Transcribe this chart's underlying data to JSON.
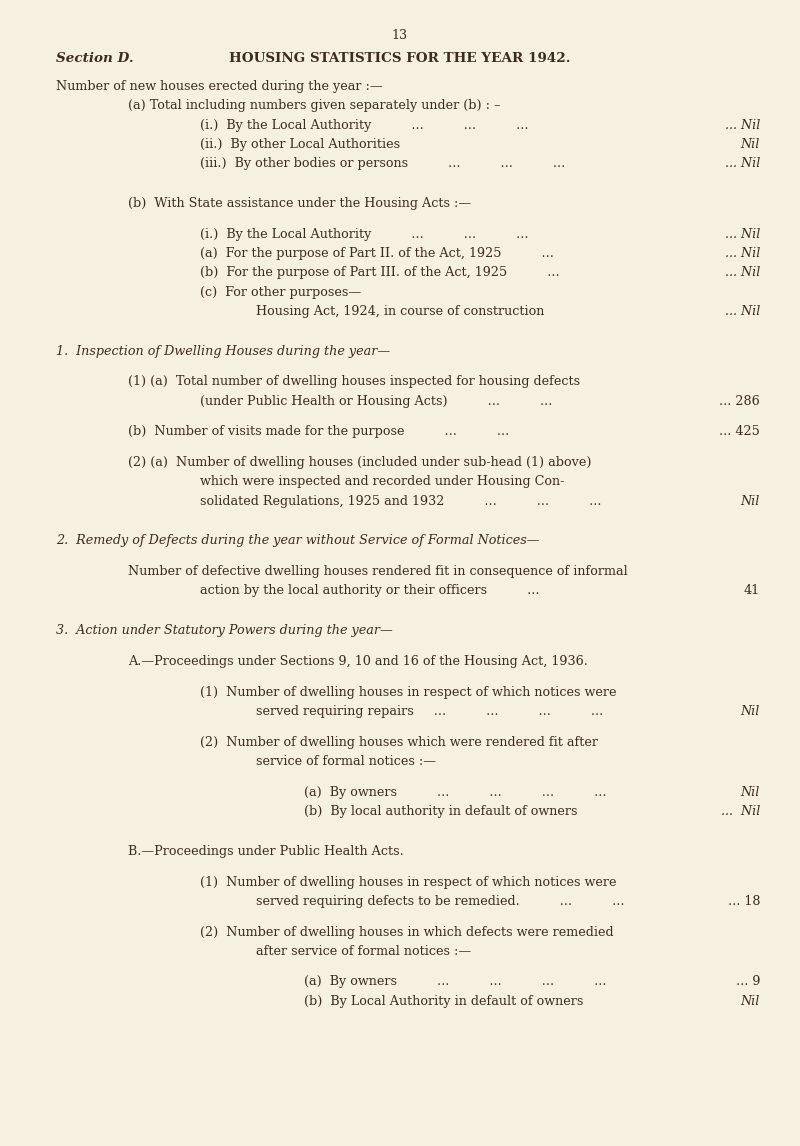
{
  "bg_color": "#f5f0e0",
  "text_color": "#3d2b1f",
  "page_number": "13",
  "section_label": "Section D.",
  "title": "HOUSING STATISTICS FOR THE YEAR 1942.",
  "lines": [
    {
      "indent": 1,
      "text": "Number of new houses erected during the year :—",
      "value": "",
      "style": "normal"
    },
    {
      "indent": 2,
      "text": "(a) Total including numbers given separately under (b) : –",
      "value": "",
      "style": "normal"
    },
    {
      "indent": 3,
      "text": "(i.)  By the Local Authority          ...          ...          ...",
      "value": "... Nil",
      "style": "normal"
    },
    {
      "indent": 3,
      "text": "(ii.)  By other Local Authorities",
      "value": "Nil",
      "style": "normal"
    },
    {
      "indent": 3,
      "text": "(iii.)  By other bodies or persons          ...          ...          ...",
      "value": "... Nil",
      "style": "normal"
    },
    {
      "indent": 0,
      "text": "",
      "value": "",
      "style": "spacer"
    },
    {
      "indent": 2,
      "text": "(b)  With State assistance under the Housing Acts :—",
      "value": "",
      "style": "normal"
    },
    {
      "indent": 0,
      "text": "",
      "value": "",
      "style": "spacer_sm"
    },
    {
      "indent": 3,
      "text": "(i.)  By the Local Authority          ...          ...          ...",
      "value": "... Nil",
      "style": "normal"
    },
    {
      "indent": 3,
      "text": "(a)  For the purpose of Part II. of the Act, 1925          ...",
      "value": "... Nil",
      "style": "normal"
    },
    {
      "indent": 3,
      "text": "(b)  For the purpose of Part III. of the Act, 1925          ...",
      "value": "... Nil",
      "style": "normal"
    },
    {
      "indent": 3,
      "text": "(c)  For other purposes—",
      "value": "",
      "style": "normal"
    },
    {
      "indent": 4,
      "text": "Housing Act, 1924, in course of construction",
      "value": "... Nil",
      "style": "normal"
    },
    {
      "indent": 0,
      "text": "",
      "value": "",
      "style": "spacer"
    },
    {
      "indent": 1,
      "text": "1.  Inspection of Dwelling Houses during the year—",
      "value": "",
      "style": "italic"
    },
    {
      "indent": 0,
      "text": "",
      "value": "",
      "style": "spacer_sm"
    },
    {
      "indent": 2,
      "text": "(1) (a)  Total number of dwelling houses inspected for housing defects",
      "value": "",
      "style": "normal"
    },
    {
      "indent": 3,
      "text": "(under Public Health or Housing Acts)          ...          ...",
      "value": "... 286",
      "style": "normal"
    },
    {
      "indent": 0,
      "text": "",
      "value": "",
      "style": "spacer_sm"
    },
    {
      "indent": 2,
      "text": "(b)  Number of visits made for the purpose          ...          ...",
      "value": "... 425",
      "style": "normal"
    },
    {
      "indent": 0,
      "text": "",
      "value": "",
      "style": "spacer_sm"
    },
    {
      "indent": 2,
      "text": "(2) (a)  Number of dwelling houses (included under sub-head (1) above)",
      "value": "",
      "style": "normal"
    },
    {
      "indent": 3,
      "text": "which were inspected and recorded under Housing Con­",
      "value": "",
      "style": "normal"
    },
    {
      "indent": 3,
      "text": "solidated Regulations, 1925 and 1932          ...          ...          ...",
      "value": "Nil",
      "style": "normal"
    },
    {
      "indent": 0,
      "text": "",
      "value": "",
      "style": "spacer"
    },
    {
      "indent": 1,
      "text": "2.  Remedy of Defects during the year without Service of Formal Notices—",
      "value": "",
      "style": "italic"
    },
    {
      "indent": 0,
      "text": "",
      "value": "",
      "style": "spacer_sm"
    },
    {
      "indent": 2,
      "text": "Number of defective dwelling houses rendered fit in consequence of informal",
      "value": "",
      "style": "normal"
    },
    {
      "indent": 3,
      "text": "action by the local authority or their officers          ...",
      "value": "41",
      "style": "normal"
    },
    {
      "indent": 0,
      "text": "",
      "value": "",
      "style": "spacer"
    },
    {
      "indent": 1,
      "text": "3.  Action under Statutory Powers during the year—",
      "value": "",
      "style": "italic"
    },
    {
      "indent": 0,
      "text": "",
      "value": "",
      "style": "spacer_sm"
    },
    {
      "indent": 2,
      "text": "A.—Proceedings under Sections 9, 10 and 16 of the Housing Act, 1936.",
      "value": "",
      "style": "normal"
    },
    {
      "indent": 0,
      "text": "",
      "value": "",
      "style": "spacer_sm"
    },
    {
      "indent": 3,
      "text": "(1)  Number of dwelling houses in respect of which notices were",
      "value": "",
      "style": "normal"
    },
    {
      "indent": 4,
      "text": "served requiring repairs     ...          ...          ...          ...",
      "value": "Nil",
      "style": "normal"
    },
    {
      "indent": 0,
      "text": "",
      "value": "",
      "style": "spacer_sm"
    },
    {
      "indent": 3,
      "text": "(2)  Number of dwelling houses which were rendered fit after",
      "value": "",
      "style": "normal"
    },
    {
      "indent": 4,
      "text": "service of formal notices :—",
      "value": "",
      "style": "normal"
    },
    {
      "indent": 0,
      "text": "",
      "value": "",
      "style": "spacer_sm"
    },
    {
      "indent": 5,
      "text": "(a)  By owners          ...          ...          ...          ...",
      "value": "Nil",
      "style": "normal"
    },
    {
      "indent": 5,
      "text": "(b)  By local authority in default of owners",
      "value": "...  Nil",
      "style": "normal"
    },
    {
      "indent": 0,
      "text": "",
      "value": "",
      "style": "spacer"
    },
    {
      "indent": 2,
      "text": "B.—Proceedings under Public Health Acts.",
      "value": "",
      "style": "normal"
    },
    {
      "indent": 0,
      "text": "",
      "value": "",
      "style": "spacer_sm"
    },
    {
      "indent": 3,
      "text": "(1)  Number of dwelling houses in respect of which notices were",
      "value": "",
      "style": "normal"
    },
    {
      "indent": 4,
      "text": "served requiring defects to be remedied.          ...          ...",
      "value": "... 18",
      "style": "normal"
    },
    {
      "indent": 0,
      "text": "",
      "value": "",
      "style": "spacer_sm"
    },
    {
      "indent": 3,
      "text": "(2)  Number of dwelling houses in which defects were remedied",
      "value": "",
      "style": "normal"
    },
    {
      "indent": 4,
      "text": "after service of formal notices :—",
      "value": "",
      "style": "normal"
    },
    {
      "indent": 0,
      "text": "",
      "value": "",
      "style": "spacer_sm"
    },
    {
      "indent": 5,
      "text": "(a)  By owners          ...          ...          ...          ...",
      "value": "... 9",
      "style": "normal"
    },
    {
      "indent": 5,
      "text": "(b)  By Local Authority in default of owners",
      "value": "Nil",
      "style": "normal"
    }
  ]
}
